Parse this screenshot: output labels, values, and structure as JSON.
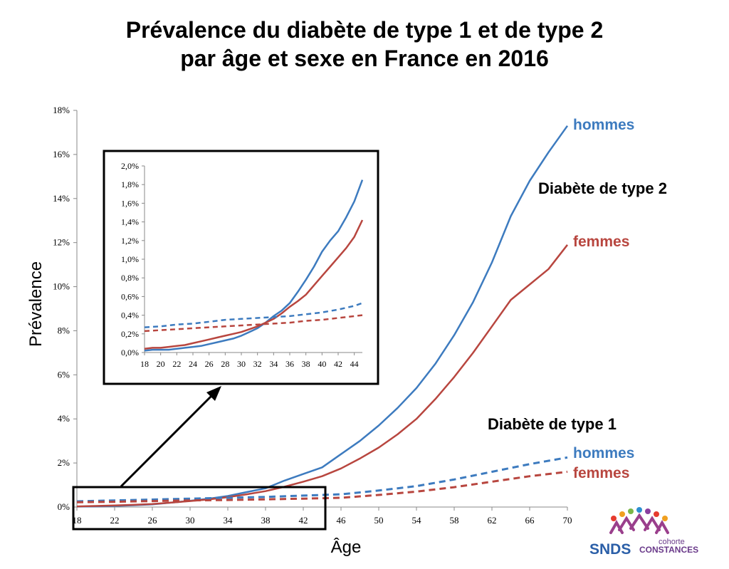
{
  "title_line1": "Prévalence du diabète de type 1 et de type 2",
  "title_line2": "par âge et sexe en France en 2016",
  "chart_data": {
    "type": "line",
    "title": "Prévalence du diabète de type 1 et de type 2 par âge et sexe en France en 2016",
    "xlabel": "Âge",
    "ylabel": "Prévalence",
    "xlim": [
      18,
      70
    ],
    "ylim": [
      0,
      18
    ],
    "x_ticks": [
      18,
      22,
      26,
      30,
      34,
      38,
      42,
      46,
      50,
      54,
      58,
      62,
      66,
      70
    ],
    "y_ticks": [
      "0%",
      "2%",
      "4%",
      "6%",
      "8%",
      "10%",
      "12%",
      "14%",
      "16%",
      "18%"
    ],
    "grid": false,
    "annotations": [
      "Diabète de type 2",
      "Diabète de type 1"
    ],
    "colors": {
      "hommes": "#3d7bbf",
      "femmes": "#b8463f"
    },
    "series": [
      {
        "name": "hommes",
        "group": "Diabète de type 2",
        "style": "solid",
        "x": [
          18,
          20,
          22,
          24,
          26,
          28,
          30,
          32,
          34,
          36,
          38,
          40,
          42,
          44,
          46,
          48,
          50,
          52,
          54,
          56,
          58,
          60,
          62,
          64,
          66,
          68,
          70
        ],
        "values": [
          0.02,
          0.03,
          0.05,
          0.08,
          0.12,
          0.2,
          0.28,
          0.38,
          0.5,
          0.68,
          0.85,
          1.2,
          1.5,
          1.8,
          2.4,
          3.0,
          3.7,
          4.5,
          5.4,
          6.5,
          7.8,
          9.3,
          11.1,
          13.2,
          14.8,
          16.1,
          17.3
        ]
      },
      {
        "name": "femmes",
        "group": "Diabète de type 2",
        "style": "solid",
        "x": [
          18,
          20,
          22,
          24,
          26,
          28,
          30,
          32,
          34,
          36,
          38,
          40,
          42,
          44,
          46,
          48,
          50,
          52,
          54,
          56,
          58,
          60,
          62,
          64,
          66,
          68,
          70
        ],
        "values": [
          0.03,
          0.05,
          0.07,
          0.1,
          0.14,
          0.2,
          0.27,
          0.35,
          0.45,
          0.58,
          0.72,
          0.92,
          1.15,
          1.4,
          1.75,
          2.2,
          2.7,
          3.3,
          4.0,
          4.9,
          5.9,
          7.0,
          8.2,
          9.4,
          10.1,
          10.8,
          11.9
        ]
      },
      {
        "name": "hommes",
        "group": "Diabète de type 1",
        "style": "dashed",
        "x": [
          18,
          22,
          26,
          30,
          34,
          38,
          42,
          46,
          50,
          54,
          58,
          62,
          66,
          70
        ],
        "values": [
          0.26,
          0.3,
          0.34,
          0.38,
          0.42,
          0.46,
          0.52,
          0.58,
          0.75,
          0.95,
          1.25,
          1.6,
          1.95,
          2.25
        ]
      },
      {
        "name": "femmes",
        "group": "Diabète de type 1",
        "style": "dashed",
        "x": [
          18,
          22,
          26,
          30,
          34,
          38,
          42,
          46,
          50,
          54,
          58,
          62,
          66,
          70
        ],
        "values": [
          0.22,
          0.24,
          0.27,
          0.3,
          0.32,
          0.35,
          0.38,
          0.42,
          0.55,
          0.7,
          0.9,
          1.15,
          1.4,
          1.6
        ]
      }
    ],
    "inset": {
      "xlim": [
        18,
        45
      ],
      "ylim": [
        0,
        2.0
      ],
      "x_ticks": [
        18,
        20,
        22,
        24,
        26,
        28,
        30,
        32,
        34,
        36,
        38,
        40,
        42,
        44
      ],
      "y_ticks": [
        "0,0%",
        "0,2%",
        "0,4%",
        "0,6%",
        "0,8%",
        "1,0%",
        "1,2%",
        "1,4%",
        "1,6%",
        "1,8%",
        "2,0%"
      ],
      "series": [
        {
          "name": "hommes",
          "style": "solid",
          "x": [
            18,
            19,
            20,
            21,
            22,
            23,
            24,
            25,
            26,
            27,
            28,
            29,
            30,
            31,
            32,
            33,
            34,
            35,
            36,
            37,
            38,
            39,
            40,
            41,
            42,
            43,
            44,
            45
          ],
          "values": [
            0.02,
            0.03,
            0.03,
            0.03,
            0.04,
            0.05,
            0.06,
            0.07,
            0.09,
            0.11,
            0.13,
            0.15,
            0.18,
            0.22,
            0.26,
            0.32,
            0.39,
            0.45,
            0.53,
            0.65,
            0.78,
            0.92,
            1.08,
            1.2,
            1.3,
            1.45,
            1.62,
            1.85
          ]
        },
        {
          "name": "femmes",
          "style": "solid",
          "x": [
            18,
            19,
            20,
            21,
            22,
            23,
            24,
            25,
            26,
            27,
            28,
            29,
            30,
            31,
            32,
            33,
            34,
            35,
            36,
            37,
            38,
            39,
            40,
            41,
            42,
            43,
            44,
            45
          ],
          "values": [
            0.04,
            0.05,
            0.05,
            0.06,
            0.07,
            0.08,
            0.1,
            0.12,
            0.14,
            0.16,
            0.18,
            0.2,
            0.22,
            0.25,
            0.28,
            0.32,
            0.36,
            0.42,
            0.49,
            0.55,
            0.62,
            0.72,
            0.82,
            0.92,
            1.02,
            1.12,
            1.24,
            1.42
          ]
        },
        {
          "name": "hommes",
          "style": "dashed",
          "x": [
            18,
            20,
            22,
            24,
            26,
            28,
            30,
            32,
            34,
            36,
            38,
            40,
            42,
            44,
            45
          ],
          "values": [
            0.27,
            0.28,
            0.3,
            0.31,
            0.33,
            0.35,
            0.36,
            0.37,
            0.38,
            0.39,
            0.41,
            0.43,
            0.46,
            0.5,
            0.53
          ]
        },
        {
          "name": "femmes",
          "style": "dashed",
          "x": [
            18,
            20,
            22,
            24,
            26,
            28,
            30,
            32,
            34,
            36,
            38,
            40,
            42,
            44,
            45
          ],
          "values": [
            0.23,
            0.24,
            0.25,
            0.26,
            0.27,
            0.28,
            0.29,
            0.3,
            0.31,
            0.32,
            0.34,
            0.35,
            0.37,
            0.39,
            0.4
          ]
        }
      ]
    }
  },
  "labels": {
    "t2_hommes": "hommes",
    "t2_femmes": "femmes",
    "t1_hommes": "hommes",
    "t1_femmes": "femmes",
    "type2": "Diabète de type 2",
    "type1": "Diabète de type 1"
  },
  "logo": {
    "brand": "SNDS",
    "cohorte": "cohorte",
    "constances": "CONSTANCES"
  }
}
